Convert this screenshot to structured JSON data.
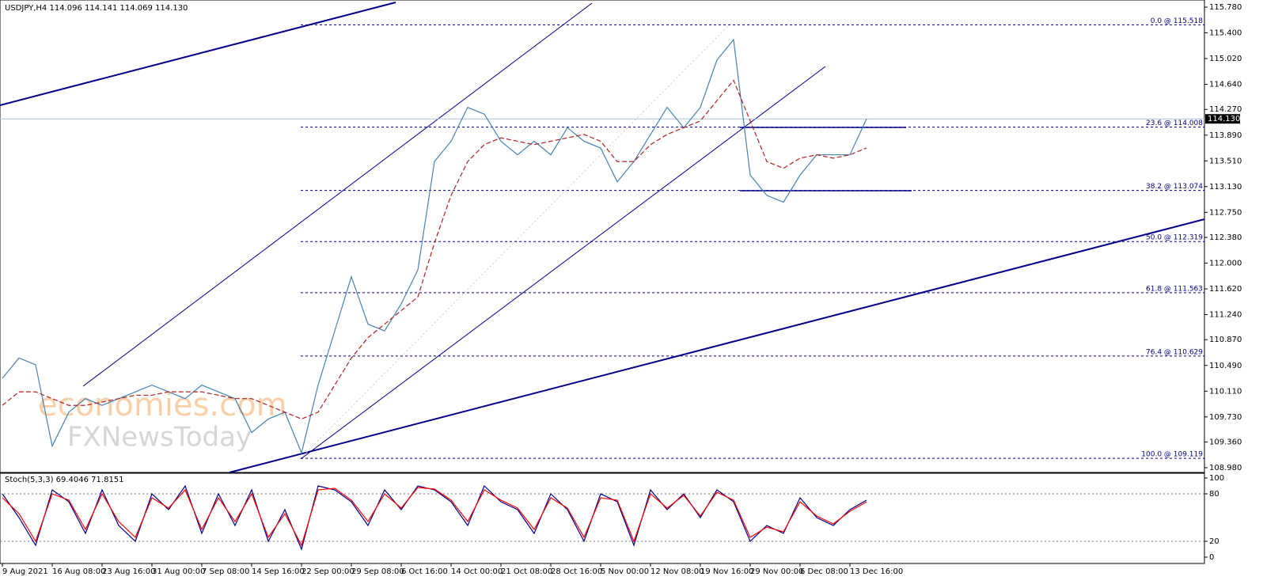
{
  "chart_data": [
    {
      "type": "line",
      "title": "USDJPY,H4  114.096 114.141 114.069 114.130",
      "categories": [
        "9 Aug 2021",
        null,
        null,
        "16 Aug 08:00",
        null,
        null,
        "23 Aug 16:00",
        null,
        null,
        "31 Aug 00:00",
        null,
        null,
        "7 Sep 08:00",
        null,
        null,
        "14 Sep 16:00",
        null,
        null,
        "22 Sep 00:00",
        null,
        null,
        "29 Sep 08:00",
        null,
        null,
        "6 Oct 16:00",
        null,
        null,
        "14 Oct 00:00",
        null,
        null,
        "21 Oct 08:00",
        null,
        null,
        "28 Oct 16:00",
        null,
        null,
        "5 Nov 00:00",
        null,
        null,
        "12 Nov 08:00",
        null,
        null,
        "19 Nov 16:00",
        null,
        null,
        "29 Nov 00:00",
        null,
        null,
        "6 Dec 08:00",
        null,
        null,
        "13 Dec 16:00",
        null
      ],
      "series": [
        {
          "color": "#4682b4",
          "values": [
            110.3,
            110.6,
            110.5,
            109.3,
            109.8,
            110.0,
            109.9,
            110.0,
            110.1,
            110.2,
            110.1,
            110.0,
            110.2,
            110.1,
            110.0,
            109.5,
            109.7,
            109.8,
            109.2,
            110.2,
            111.0,
            111.8,
            111.1,
            111.0,
            111.4,
            111.9,
            113.5,
            113.8,
            114.3,
            114.2,
            113.8,
            113.6,
            113.8,
            113.6,
            114.0,
            113.8,
            113.7,
            113.2,
            113.5,
            113.9,
            114.3,
            114.0,
            114.3,
            115.0,
            115.3,
            113.3,
            113.0,
            112.9,
            113.3,
            113.6,
            113.6,
            113.6,
            114.13
          ]
        },
        {
          "color": "#b22222",
          "dashed": true,
          "values": [
            109.9,
            110.1,
            110.1,
            110.0,
            109.9,
            109.9,
            109.95,
            110.0,
            110.05,
            110.05,
            110.1,
            110.1,
            110.1,
            110.05,
            110.0,
            110.0,
            109.9,
            109.8,
            109.7,
            109.8,
            110.2,
            110.6,
            110.9,
            111.1,
            111.3,
            111.5,
            112.3,
            113.0,
            113.5,
            113.75,
            113.85,
            113.8,
            113.75,
            113.8,
            113.85,
            113.9,
            113.8,
            113.5,
            113.5,
            113.75,
            113.9,
            114.0,
            114.1,
            114.4,
            114.7,
            114.1,
            113.5,
            113.4,
            113.55,
            113.6,
            113.55,
            113.6,
            113.7
          ]
        }
      ],
      "ylim": [
        108.91,
        115.885
      ],
      "yticks": [
        {
          "value": 115.78,
          "label": "115.780"
        },
        {
          "value": 115.4,
          "label": "115.400"
        },
        {
          "value": 115.02,
          "label": "115.020"
        },
        {
          "value": 114.64,
          "label": "114.640"
        },
        {
          "value": 114.27,
          "label": "114.270"
        },
        {
          "value": 113.89,
          "label": "113.890"
        },
        {
          "value": 113.51,
          "label": "113.510"
        },
        {
          "value": 113.13,
          "label": "113.130"
        },
        {
          "value": 112.75,
          "label": "112.750"
        },
        {
          "value": 112.38,
          "label": "112.380"
        },
        {
          "value": 112.0,
          "label": "112.000"
        },
        {
          "value": 111.62,
          "label": "111.620"
        },
        {
          "value": 111.24,
          "label": "111.240"
        },
        {
          "value": 110.87,
          "label": "110.870"
        },
        {
          "value": 110.49,
          "label": "110.490"
        },
        {
          "value": 110.11,
          "label": "110.110"
        },
        {
          "value": 109.73,
          "label": "109.730"
        },
        {
          "value": 109.36,
          "label": "109.360"
        },
        {
          "value": 108.98,
          "label": "108.980"
        }
      ],
      "levels": [
        {
          "value": 115.518,
          "label": "0.0 @ 115.518"
        },
        {
          "value": 114.008,
          "label": "23.6 @ 114.008"
        },
        {
          "value": 113.074,
          "label": "38.2 @ 113.074"
        },
        {
          "value": 112.319,
          "label": "50.0 @ 112.319"
        },
        {
          "value": 111.563,
          "label": "61.8 @ 111.563"
        },
        {
          "value": 110.629,
          "label": "76.4 @ 110.629"
        },
        {
          "value": 109.119,
          "label": "100.0 @ 109.119"
        }
      ],
      "last_price": {
        "value": 114.13,
        "label": "114.130"
      },
      "watermark": [
        "economies.com",
        "FXNewsToday"
      ]
    },
    {
      "type": "line",
      "title": "Stoch(5,3,3) 69.4046 71.8151",
      "series": [
        {
          "color": "#00008b",
          "values": [
            80,
            50,
            15,
            85,
            70,
            30,
            85,
            40,
            20,
            80,
            60,
            90,
            30,
            80,
            40,
            85,
            20,
            60,
            10,
            90,
            85,
            70,
            40,
            85,
            60,
            90,
            85,
            70,
            40,
            90,
            70,
            60,
            30,
            80,
            60,
            20,
            80,
            70,
            15,
            85,
            60,
            80,
            50,
            85,
            70,
            20,
            40,
            30,
            75,
            50,
            40,
            60,
            72
          ]
        },
        {
          "color": "#ff0000",
          "values": [
            75,
            55,
            20,
            80,
            72,
            35,
            80,
            45,
            25,
            75,
            62,
            85,
            35,
            75,
            45,
            80,
            25,
            55,
            15,
            85,
            87,
            72,
            45,
            80,
            62,
            88,
            86,
            72,
            45,
            85,
            72,
            62,
            35,
            75,
            62,
            25,
            75,
            72,
            20,
            80,
            62,
            78,
            52,
            82,
            72,
            25,
            38,
            32,
            70,
            52,
            42,
            58,
            69.8
          ]
        }
      ],
      "ylim": [
        -8,
        106
      ],
      "yticks": [
        100,
        80,
        20,
        0
      ],
      "levels": [
        80,
        20
      ]
    }
  ]
}
